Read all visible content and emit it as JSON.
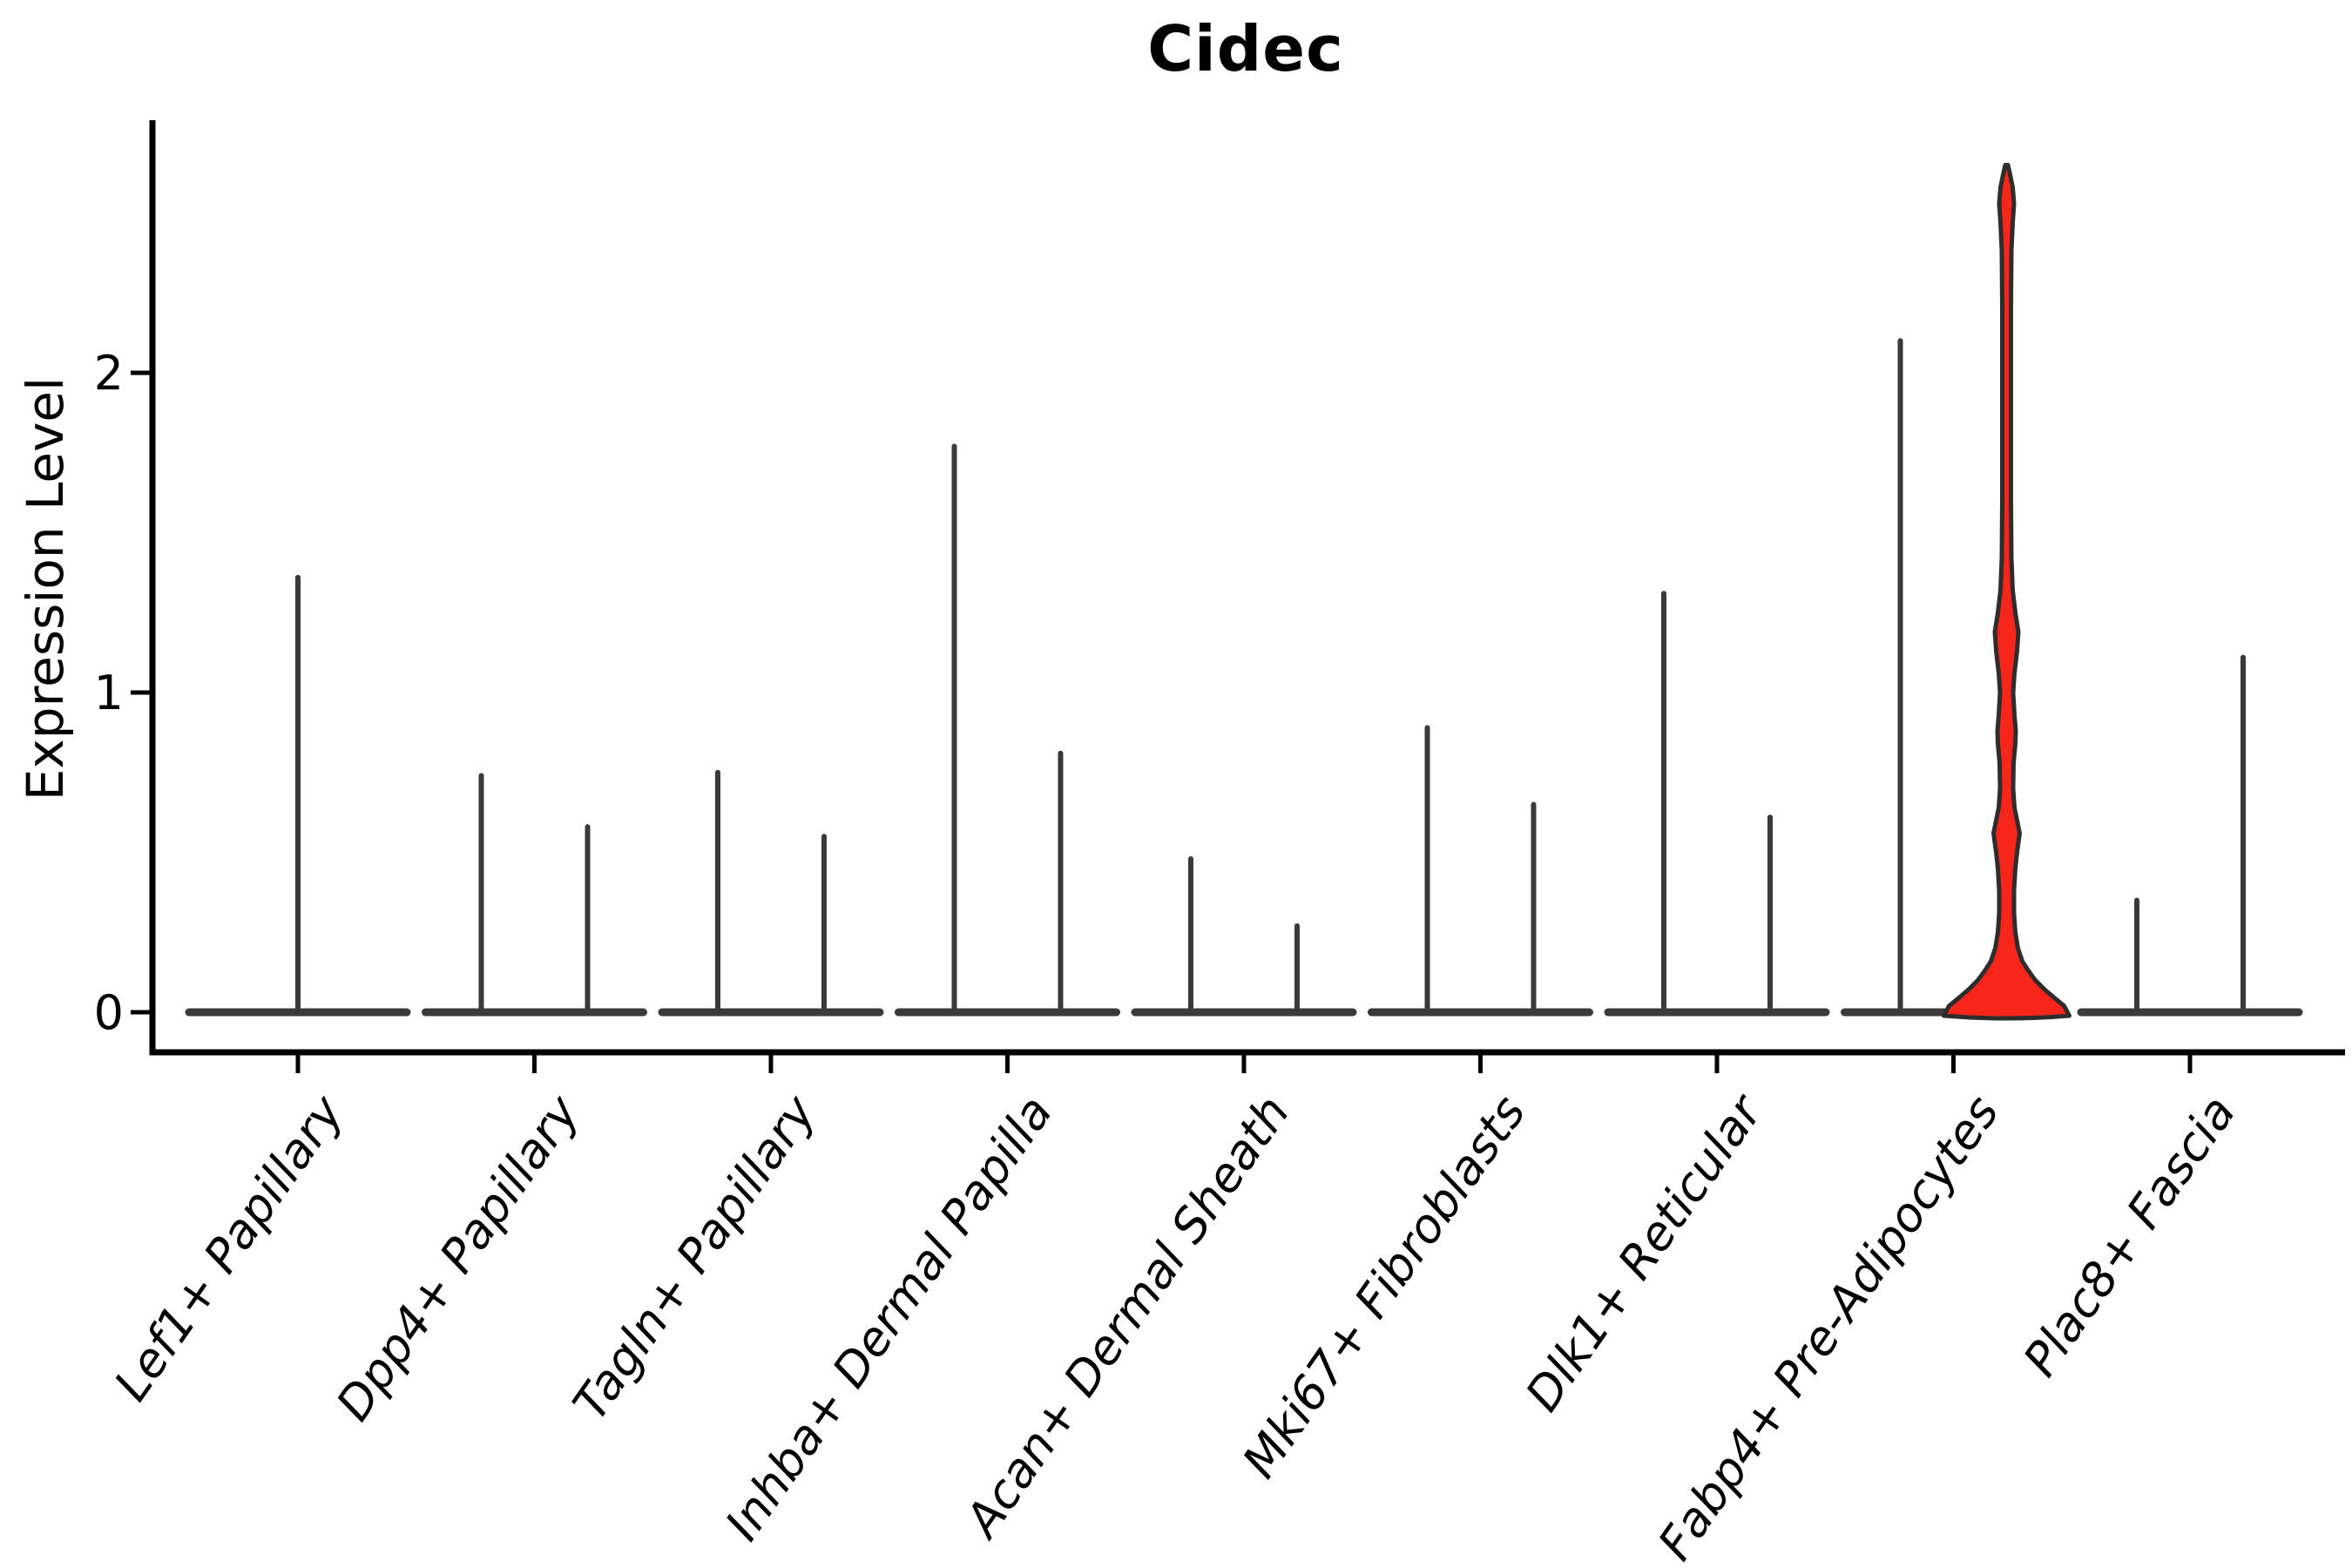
{
  "title": "Cidec",
  "y_axis": {
    "label": "Expression Level",
    "ticks": [
      "0",
      "1",
      "2"
    ]
  },
  "chart_data": {
    "type": "violin",
    "title": "Cidec",
    "xlabel": "",
    "ylabel": "Expression Level",
    "ylim": [
      0,
      2.78
    ],
    "ytick_values": [
      0,
      1,
      2
    ],
    "x_tick_label_rotation_deg": 55,
    "x_tick_label_style": "italic",
    "grid": false,
    "legend": "none",
    "description": "Violin plot of Cidec expression per fibroblast cluster; most violins are collapsed flat at 0 with thin spikes reaching the maximum expressed value; the Fabp4+ Pre-Adipocytes right-hand violin is the only one with visible density (red filled).",
    "line_color": "#3a3a3a",
    "axis_color": "#000000",
    "highlight_fill_color": "#f8251a",
    "highlight_stroke_color": "#2d2d2d",
    "categories": [
      {
        "label": "Lef1+ Papillary",
        "violins": [
          {
            "position": "center",
            "max_expression": 1.36,
            "shape": "spike"
          }
        ]
      },
      {
        "label": "Dpp4+ Papillary",
        "violins": [
          {
            "position": "left",
            "max_expression": 0.74,
            "shape": "spike"
          },
          {
            "position": "right",
            "max_expression": 0.58,
            "shape": "spike"
          }
        ]
      },
      {
        "label": "Tagln+ Papillary",
        "violins": [
          {
            "position": "left",
            "max_expression": 0.75,
            "shape": "spike"
          },
          {
            "position": "right",
            "max_expression": 0.55,
            "shape": "spike"
          }
        ]
      },
      {
        "label": "Inhba+ Dermal Papilla",
        "violins": [
          {
            "position": "left",
            "max_expression": 1.77,
            "shape": "spike"
          },
          {
            "position": "right",
            "max_expression": 0.81,
            "shape": "spike"
          }
        ]
      },
      {
        "label": "Acan+ Dermal Sheath",
        "violins": [
          {
            "position": "left",
            "max_expression": 0.48,
            "shape": "spike"
          },
          {
            "position": "right",
            "max_expression": 0.27,
            "shape": "spike"
          }
        ]
      },
      {
        "label": "Mki67+ Fibroblasts",
        "violins": [
          {
            "position": "left",
            "max_expression": 0.89,
            "shape": "spike"
          },
          {
            "position": "right",
            "max_expression": 0.65,
            "shape": "spike"
          }
        ]
      },
      {
        "label": "Dlk1+ Reticular",
        "violins": [
          {
            "position": "left",
            "max_expression": 1.31,
            "shape": "spike"
          },
          {
            "position": "right",
            "max_expression": 0.61,
            "shape": "spike"
          }
        ]
      },
      {
        "label": "Fabp4+ Pre-Adipocytes",
        "violins": [
          {
            "position": "left",
            "max_expression": 2.1,
            "shape": "spike"
          },
          {
            "position": "right",
            "max_expression": 2.65,
            "shape": "density",
            "fill": "#f8251a"
          }
        ]
      },
      {
        "label": "Plac8+ Fascia",
        "violins": [
          {
            "position": "left",
            "max_expression": 0.35,
            "shape": "spike"
          },
          {
            "position": "right",
            "max_expression": 1.11,
            "shape": "spike"
          }
        ]
      }
    ],
    "density_violin_profile_halfwidth_by_value": [
      [
        0.0,
        72
      ],
      [
        0.02,
        66
      ],
      [
        0.04,
        57
      ],
      [
        0.07,
        44
      ],
      [
        0.1,
        33
      ],
      [
        0.13,
        25
      ],
      [
        0.16,
        18
      ],
      [
        0.2,
        13
      ],
      [
        0.25,
        10
      ],
      [
        0.31,
        8.5
      ],
      [
        0.38,
        8.5
      ],
      [
        0.45,
        10
      ],
      [
        0.5,
        12
      ],
      [
        0.56,
        15
      ],
      [
        0.6,
        12
      ],
      [
        0.64,
        9
      ],
      [
        0.7,
        7.5
      ],
      [
        0.78,
        8
      ],
      [
        0.84,
        10
      ],
      [
        0.88,
        10.5
      ],
      [
        0.93,
        9
      ],
      [
        1.0,
        7.5
      ],
      [
        1.06,
        9
      ],
      [
        1.13,
        12
      ],
      [
        1.19,
        13.5
      ],
      [
        1.25,
        10
      ],
      [
        1.32,
        7
      ],
      [
        1.42,
        5.5
      ],
      [
        1.6,
        5
      ],
      [
        1.9,
        5
      ],
      [
        2.2,
        5
      ],
      [
        2.38,
        5.5
      ],
      [
        2.47,
        7
      ],
      [
        2.53,
        8.5
      ],
      [
        2.58,
        7
      ],
      [
        2.62,
        4
      ],
      [
        2.65,
        1.5
      ]
    ]
  }
}
